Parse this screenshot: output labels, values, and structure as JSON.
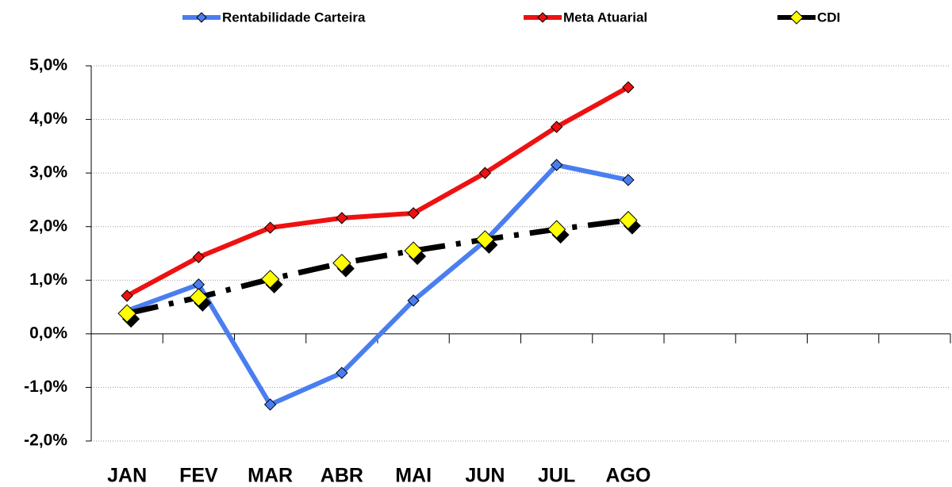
{
  "chart_data": {
    "type": "line",
    "categories": [
      "JAN",
      "FEV",
      "MAR",
      "ABR",
      "MAI",
      "JUN",
      "JUL",
      "AGO",
      null,
      null,
      null,
      null
    ],
    "series": [
      {
        "name": "Rentabilidade Carteira",
        "color": "#4a7ef0",
        "values": [
          0.43,
          0.92,
          -1.32,
          -0.73,
          0.62,
          1.73,
          3.15,
          2.87,
          null,
          null,
          null,
          null
        ]
      },
      {
        "name": "Meta Atuarial",
        "color": "#ee1111",
        "values": [
          0.71,
          1.43,
          1.98,
          2.16,
          2.25,
          3.0,
          3.86,
          4.6,
          null,
          null,
          null,
          null
        ]
      },
      {
        "name": "CDI",
        "color": "#000000",
        "marker_color": "#ffff00",
        "values": [
          0.38,
          0.68,
          1.02,
          1.32,
          1.55,
          1.76,
          1.95,
          2.12,
          null,
          null,
          null,
          null
        ]
      }
    ],
    "ylim": [
      -2,
      5
    ],
    "yticks": [
      {
        "value": -2,
        "label": "-2,0%"
      },
      {
        "value": -1,
        "label": "-1,0%"
      },
      {
        "value": 0,
        "label": "0,0%"
      },
      {
        "value": 1,
        "label": "1,0%"
      },
      {
        "value": 2,
        "label": "2,0%"
      },
      {
        "value": 3,
        "label": "3,0%"
      },
      {
        "value": 4,
        "label": "4,0%"
      },
      {
        "value": 5,
        "label": "5,0%"
      }
    ],
    "grid": true,
    "legend": "top"
  }
}
